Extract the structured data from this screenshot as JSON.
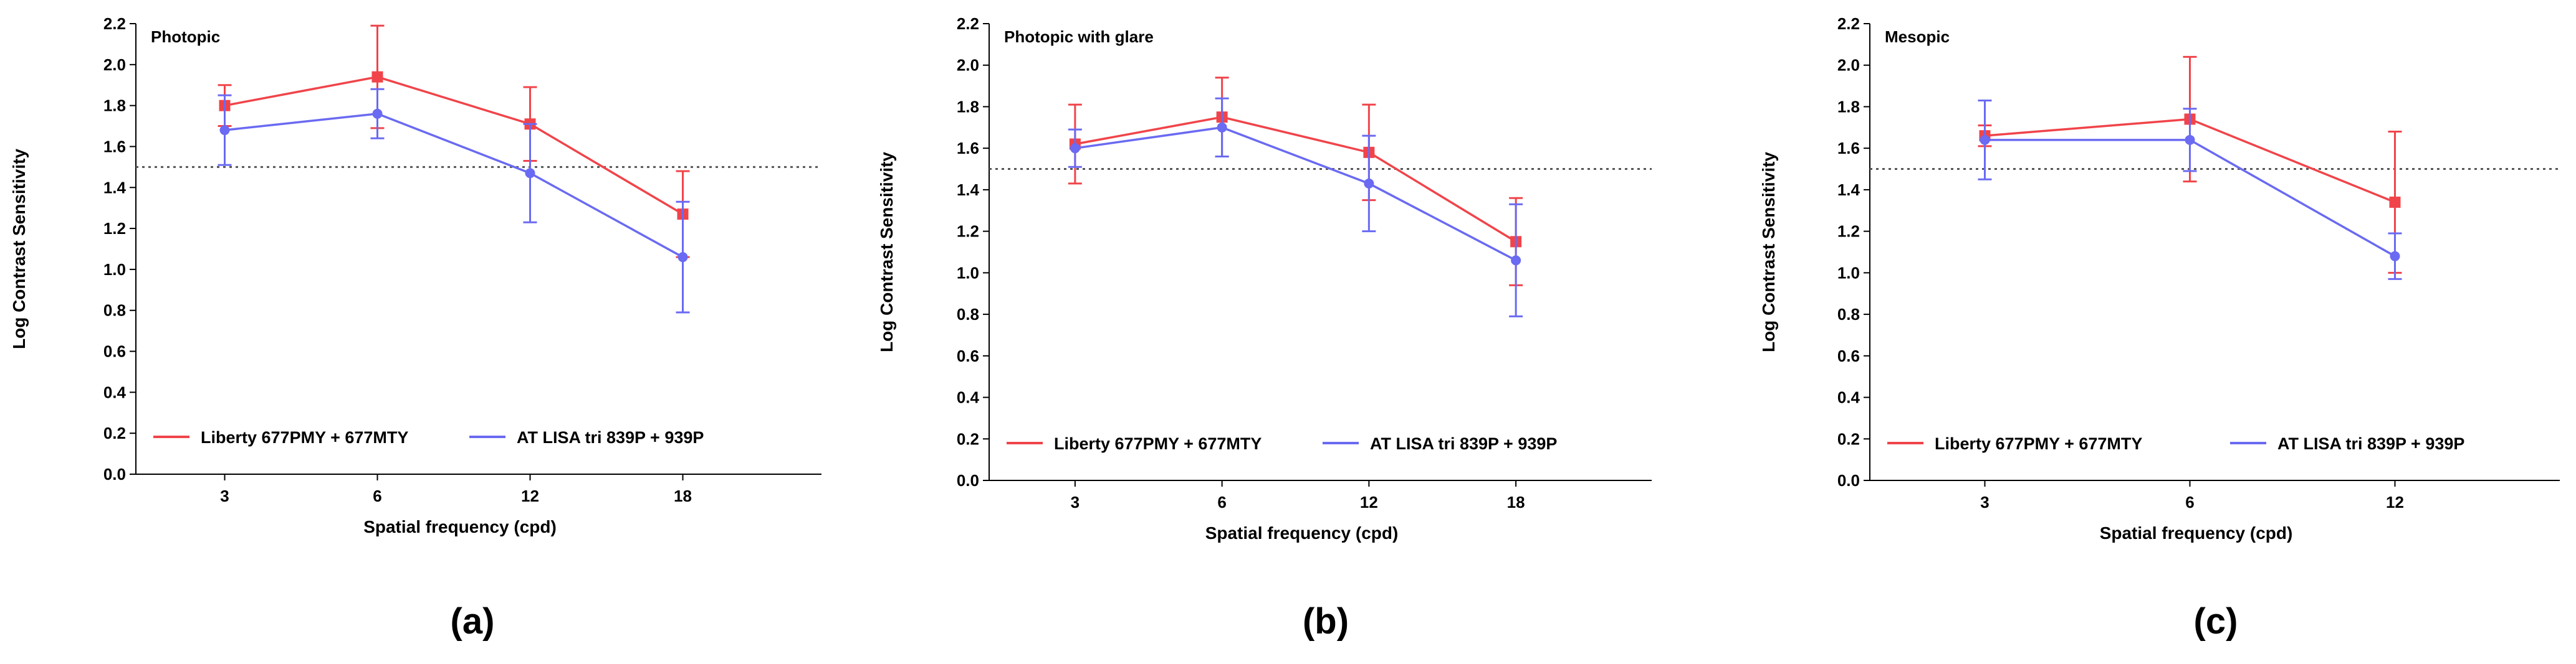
{
  "colors": {
    "series_a": "#f0444a",
    "series_b": "#6a6af2",
    "axis": "#000000",
    "reference": "#555555"
  },
  "panels": [
    {
      "caption": "(a)",
      "chart_data": {
        "type": "line",
        "title": "Photopic",
        "xlabel": "Spatial frequency (cpd)",
        "ylabel": "Log Contrast Sensitivity",
        "categories": [
          "3",
          "6",
          "12",
          "18"
        ],
        "ylim": [
          0,
          2.2
        ],
        "yticks": [
          "0.0",
          "0.2",
          "0.4",
          "0.6",
          "0.8",
          "1.0",
          "1.2",
          "1.4",
          "1.6",
          "1.8",
          "2.0",
          "2.2"
        ],
        "reference_line": 1.5,
        "series": [
          {
            "name": "Liberty 677PMY + 677MTY",
            "marker": "square",
            "values": [
              1.8,
              1.94,
              1.71,
              1.27
            ],
            "errors": [
              0.1,
              0.25,
              0.18,
              0.21
            ]
          },
          {
            "name": "AT LISA tri 839P + 939P",
            "marker": "circle",
            "values": [
              1.68,
              1.76,
              1.47,
              1.06
            ],
            "errors": [
              0.17,
              0.12,
              0.24,
              0.27
            ]
          }
        ]
      }
    },
    {
      "caption": "(b)",
      "chart_data": {
        "type": "line",
        "title": "Photopic with glare",
        "xlabel": "Spatial frequency (cpd)",
        "ylabel": "Log Contrast Sensitivity",
        "categories": [
          "3",
          "6",
          "12",
          "18"
        ],
        "ylim": [
          0,
          2.2
        ],
        "yticks": [
          "0.0",
          "0.2",
          "0.4",
          "0.6",
          "0.8",
          "1.0",
          "1.2",
          "1.4",
          "1.6",
          "1.8",
          "2.0",
          "2.2"
        ],
        "reference_line": 1.5,
        "series": [
          {
            "name": "Liberty 677PMY + 677MTY",
            "marker": "square",
            "values": [
              1.62,
              1.75,
              1.58,
              1.15
            ],
            "errors": [
              0.19,
              0.19,
              0.23,
              0.21
            ]
          },
          {
            "name": "AT LISA tri 839P + 939P",
            "marker": "circle",
            "values": [
              1.6,
              1.7,
              1.43,
              1.06
            ],
            "errors": [
              0.09,
              0.14,
              0.23,
              0.27
            ]
          }
        ]
      }
    },
    {
      "caption": "(c)",
      "chart_data": {
        "type": "line",
        "title": "Mesopic",
        "xlabel": "Spatial frequency (cpd)",
        "ylabel": "Log Contrast Sensitivity",
        "categories": [
          "3",
          "6",
          "12"
        ],
        "ylim": [
          0,
          2.2
        ],
        "yticks": [
          "0.0",
          "0.2",
          "0.4",
          "0.6",
          "0.8",
          "1.0",
          "1.2",
          "1.4",
          "1.6",
          "1.8",
          "2.0",
          "2.2"
        ],
        "reference_line": 1.5,
        "series": [
          {
            "name": "Liberty 677PMY + 677MTY",
            "marker": "square",
            "values": [
              1.66,
              1.74,
              1.34
            ],
            "errors": [
              0.05,
              0.3,
              0.34
            ]
          },
          {
            "name": "AT LISA tri 839P + 939P",
            "marker": "circle",
            "values": [
              1.64,
              1.64,
              1.08
            ],
            "errors": [
              0.19,
              0.15,
              0.11
            ]
          }
        ]
      }
    }
  ]
}
